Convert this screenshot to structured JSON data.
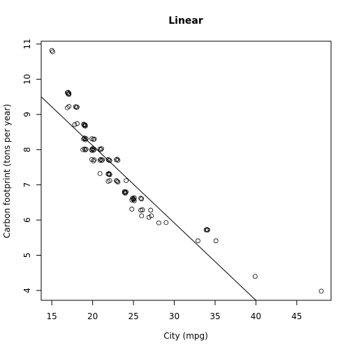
{
  "chart_data": {
    "type": "scatter",
    "title": "Linear",
    "xlabel": "City (mpg)",
    "ylabel": "Carbon footprint (tons per year)",
    "xlim": [
      13.7,
      49.2
    ],
    "ylim": [
      3.72,
      11.08
    ],
    "xticks": [
      15,
      20,
      25,
      30,
      35,
      40,
      45
    ],
    "yticks": [
      4,
      5,
      6,
      7,
      8,
      9,
      10,
      11
    ],
    "grid": false,
    "regression_line": {
      "x": [
        13.7,
        40.0
      ],
      "y": [
        9.5,
        3.72
      ]
    },
    "points": [
      [
        15.0,
        10.82
      ],
      [
        15.1,
        10.78
      ],
      [
        16.9,
        9.62
      ],
      [
        17.0,
        9.58
      ],
      [
        17.1,
        9.6
      ],
      [
        17.0,
        9.63
      ],
      [
        17.1,
        9.57
      ],
      [
        16.9,
        9.19
      ],
      [
        17.1,
        9.23
      ],
      [
        17.9,
        9.22
      ],
      [
        18.1,
        9.21
      ],
      [
        18.0,
        9.2
      ],
      [
        17.8,
        8.71
      ],
      [
        18.1,
        8.74
      ],
      [
        18.9,
        8.72
      ],
      [
        19.0,
        8.68
      ],
      [
        19.1,
        8.7
      ],
      [
        19.0,
        8.71
      ],
      [
        19.1,
        8.67
      ],
      [
        18.9,
        8.3
      ],
      [
        19.0,
        8.33
      ],
      [
        19.1,
        8.28
      ],
      [
        19.0,
        8.32
      ],
      [
        19.2,
        8.31
      ],
      [
        19.9,
        8.31
      ],
      [
        20.1,
        8.29
      ],
      [
        20.2,
        8.3
      ],
      [
        18.8,
        8.0
      ],
      [
        19.0,
        8.02
      ],
      [
        19.1,
        7.99
      ],
      [
        19.2,
        8.01
      ],
      [
        19.9,
        8.0
      ],
      [
        20.0,
        8.02
      ],
      [
        20.1,
        7.98
      ],
      [
        20.2,
        8.01
      ],
      [
        19.9,
        7.98
      ],
      [
        20.0,
        8.03
      ],
      [
        20.9,
        8.02
      ],
      [
        21.0,
        8.0
      ],
      [
        21.1,
        8.03
      ],
      [
        19.9,
        7.72
      ],
      [
        20.1,
        7.68
      ],
      [
        20.2,
        7.71
      ],
      [
        20.9,
        7.7
      ],
      [
        21.0,
        7.72
      ],
      [
        21.1,
        7.69
      ],
      [
        21.2,
        7.71
      ],
      [
        21.9,
        7.72
      ],
      [
        22.0,
        7.7
      ],
      [
        22.1,
        7.69
      ],
      [
        22.9,
        7.71
      ],
      [
        23.0,
        7.73
      ],
      [
        23.1,
        7.7
      ],
      [
        20.9,
        7.32
      ],
      [
        21.9,
        7.31
      ],
      [
        22.0,
        7.3
      ],
      [
        22.1,
        7.29
      ],
      [
        22.0,
        7.32
      ],
      [
        21.9,
        7.1
      ],
      [
        22.1,
        7.12
      ],
      [
        22.9,
        7.12
      ],
      [
        23.0,
        7.1
      ],
      [
        23.1,
        7.08
      ],
      [
        24.1,
        7.12
      ],
      [
        23.9,
        6.81
      ],
      [
        24.0,
        6.79
      ],
      [
        24.1,
        6.8
      ],
      [
        24.0,
        6.76
      ],
      [
        23.9,
        6.78
      ],
      [
        24.9,
        6.62
      ],
      [
        25.0,
        6.6
      ],
      [
        25.1,
        6.63
      ],
      [
        25.0,
        6.58
      ],
      [
        24.8,
        6.57
      ],
      [
        25.1,
        6.55
      ],
      [
        25.9,
        6.62
      ],
      [
        26.0,
        6.6
      ],
      [
        24.8,
        6.31
      ],
      [
        25.9,
        6.28
      ],
      [
        26.1,
        6.29
      ],
      [
        27.1,
        6.28
      ],
      [
        26.0,
        6.12
      ],
      [
        27.2,
        6.12
      ],
      [
        26.9,
        6.08
      ],
      [
        28.1,
        5.92
      ],
      [
        29.0,
        5.93
      ],
      [
        33.9,
        5.72
      ],
      [
        34.0,
        5.73
      ],
      [
        34.1,
        5.72
      ],
      [
        32.9,
        5.41
      ],
      [
        35.1,
        5.41
      ],
      [
        39.9,
        4.4
      ],
      [
        48.0,
        3.98
      ]
    ]
  }
}
